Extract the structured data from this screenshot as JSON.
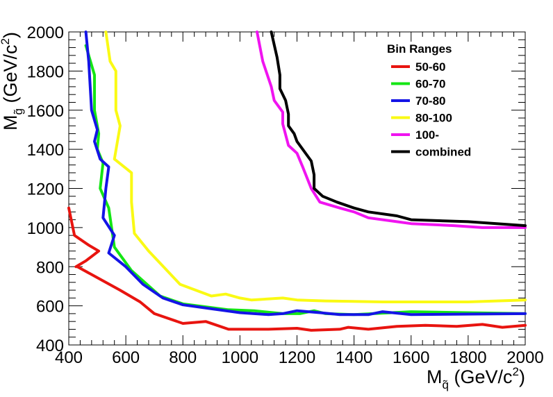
{
  "chart_data": {
    "type": "line",
    "xlabel": {
      "main": "M",
      "sub": "q̃",
      "unit": " (GeV/c",
      "sup": "2",
      "close": ")"
    },
    "ylabel": {
      "main": "M",
      "sub": "g̃",
      "unit": " (GeV/c",
      "sup": "2",
      "close": ")"
    },
    "xlim": [
      400,
      2000
    ],
    "ylim": [
      400,
      2000
    ],
    "x_ticks": [
      "400",
      "600",
      "800",
      "1000",
      "1200",
      "1400",
      "1600",
      "1800",
      "2000"
    ],
    "y_ticks": [
      "400",
      "600",
      "800",
      "1000",
      "1200",
      "1400",
      "1600",
      "1800",
      "2000"
    ],
    "grid": false,
    "legend": {
      "title": "Bin Ranges",
      "position": "top-right"
    },
    "series": [
      {
        "name": "50-60",
        "color": "#e8140f",
        "points": [
          [
            400,
            1100
          ],
          [
            420,
            960
          ],
          [
            470,
            910
          ],
          [
            505,
            880
          ],
          [
            460,
            830
          ],
          [
            425,
            800
          ],
          [
            430,
            800
          ],
          [
            480,
            760
          ],
          [
            580,
            680
          ],
          [
            650,
            620
          ],
          [
            700,
            560
          ],
          [
            800,
            510
          ],
          [
            880,
            520
          ],
          [
            960,
            480
          ],
          [
            1100,
            480
          ],
          [
            1200,
            485
          ],
          [
            1250,
            475
          ],
          [
            1350,
            480
          ],
          [
            1380,
            490
          ],
          [
            1450,
            480
          ],
          [
            1550,
            495
          ],
          [
            1650,
            500
          ],
          [
            1760,
            495
          ],
          [
            1850,
            505
          ],
          [
            1920,
            490
          ],
          [
            2000,
            500
          ]
        ]
      },
      {
        "name": "60-70",
        "color": "#14e614",
        "points": [
          [
            460,
            1930
          ],
          [
            470,
            1880
          ],
          [
            490,
            1780
          ],
          [
            490,
            1600
          ],
          [
            505,
            1480
          ],
          [
            500,
            1400
          ],
          [
            520,
            1330
          ],
          [
            510,
            1200
          ],
          [
            540,
            1100
          ],
          [
            560,
            900
          ],
          [
            620,
            780
          ],
          [
            720,
            650
          ],
          [
            800,
            610
          ],
          [
            960,
            580
          ],
          [
            1050,
            575
          ],
          [
            1150,
            560
          ],
          [
            1210,
            560
          ],
          [
            1260,
            575
          ],
          [
            1300,
            560
          ],
          [
            1400,
            555
          ],
          [
            1600,
            570
          ],
          [
            2000,
            560
          ]
        ]
      },
      {
        "name": "70-80",
        "color": "#1414e6",
        "points": [
          [
            460,
            2000
          ],
          [
            470,
            1850
          ],
          [
            480,
            1600
          ],
          [
            500,
            1500
          ],
          [
            490,
            1440
          ],
          [
            510,
            1350
          ],
          [
            540,
            1310
          ],
          [
            530,
            1200
          ],
          [
            520,
            1050
          ],
          [
            560,
            960
          ],
          [
            540,
            870
          ],
          [
            600,
            800
          ],
          [
            660,
            710
          ],
          [
            730,
            640
          ],
          [
            800,
            605
          ],
          [
            900,
            585
          ],
          [
            1000,
            565
          ],
          [
            1100,
            555
          ],
          [
            1150,
            560
          ],
          [
            1200,
            575
          ],
          [
            1280,
            565
          ],
          [
            1350,
            555
          ],
          [
            1450,
            555
          ],
          [
            1500,
            570
          ],
          [
            1600,
            555
          ],
          [
            2000,
            560
          ]
        ]
      },
      {
        "name": "80-100",
        "color": "#fafa14",
        "points": [
          [
            530,
            2000
          ],
          [
            545,
            1850
          ],
          [
            565,
            1800
          ],
          [
            565,
            1600
          ],
          [
            580,
            1520
          ],
          [
            560,
            1350
          ],
          [
            620,
            1280
          ],
          [
            620,
            1130
          ],
          [
            630,
            970
          ],
          [
            680,
            880
          ],
          [
            790,
            710
          ],
          [
            900,
            650
          ],
          [
            950,
            660
          ],
          [
            1000,
            640
          ],
          [
            1040,
            630
          ],
          [
            1150,
            640
          ],
          [
            1200,
            630
          ],
          [
            1300,
            625
          ],
          [
            1500,
            620
          ],
          [
            1800,
            620
          ],
          [
            1900,
            625
          ],
          [
            2000,
            630
          ]
        ]
      },
      {
        "name": "100-",
        "color": "#f014f0",
        "points": [
          [
            1060,
            2000
          ],
          [
            1080,
            1850
          ],
          [
            1110,
            1720
          ],
          [
            1120,
            1650
          ],
          [
            1150,
            1590
          ],
          [
            1150,
            1530
          ],
          [
            1170,
            1420
          ],
          [
            1200,
            1380
          ],
          [
            1220,
            1310
          ],
          [
            1250,
            1200
          ],
          [
            1280,
            1130
          ],
          [
            1350,
            1100
          ],
          [
            1400,
            1080
          ],
          [
            1450,
            1050
          ],
          [
            1550,
            1030
          ],
          [
            1600,
            1020
          ],
          [
            1750,
            1010
          ],
          [
            1850,
            1000
          ],
          [
            2000,
            1000
          ]
        ]
      },
      {
        "name": "combined",
        "color": "#000000",
        "points": [
          [
            1110,
            2000
          ],
          [
            1130,
            1870
          ],
          [
            1140,
            1780
          ],
          [
            1140,
            1710
          ],
          [
            1160,
            1650
          ],
          [
            1170,
            1580
          ],
          [
            1170,
            1520
          ],
          [
            1190,
            1480
          ],
          [
            1200,
            1440
          ],
          [
            1250,
            1340
          ],
          [
            1260,
            1270
          ],
          [
            1260,
            1200
          ],
          [
            1290,
            1160
          ],
          [
            1340,
            1130
          ],
          [
            1400,
            1100
          ],
          [
            1450,
            1080
          ],
          [
            1550,
            1060
          ],
          [
            1600,
            1040
          ],
          [
            1800,
            1030
          ],
          [
            2000,
            1010
          ]
        ]
      }
    ]
  }
}
